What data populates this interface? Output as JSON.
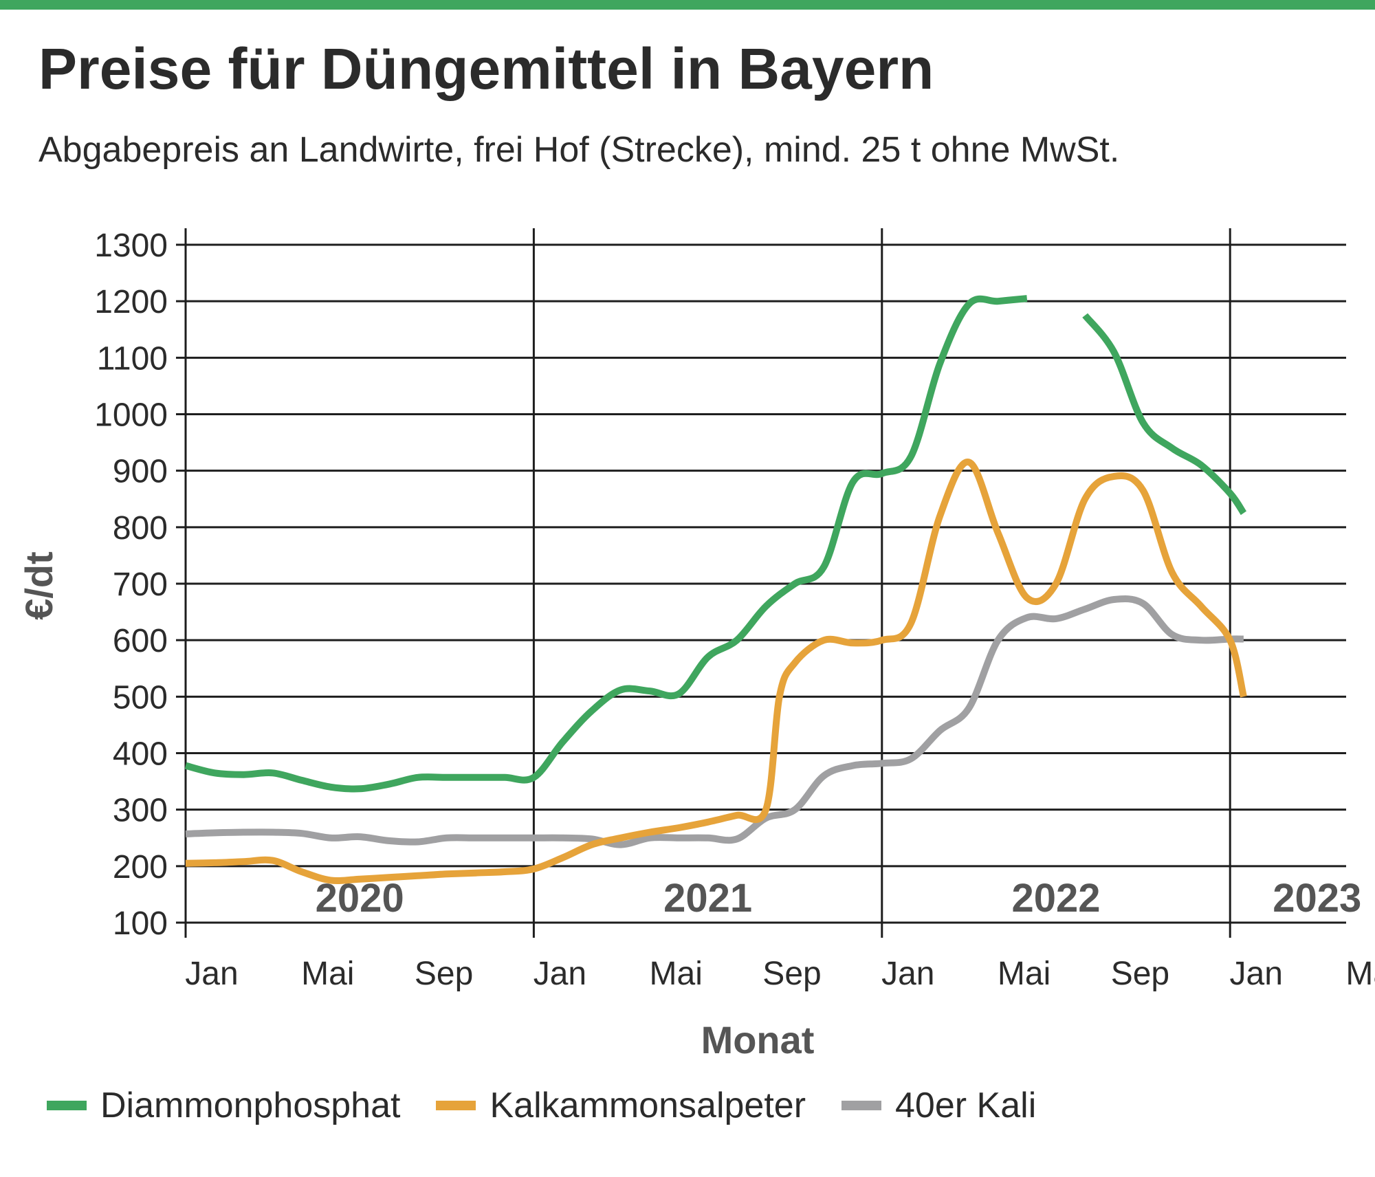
{
  "header": {
    "title": "Preise für Düngemittel in Bayern",
    "subtitle": "Abgabepreis an Landwirte, frei Hof (Strecke), mind. 25 t ohne MwSt.",
    "accent_color": "#3fa65e"
  },
  "chart_data": {
    "type": "line",
    "title": "Preise für Düngemittel in Bayern",
    "subtitle": "Abgabepreis an Landwirte, frei Hof (Strecke), mind. 25 t ohne MwSt.",
    "xlabel": "Monat",
    "ylabel": "€/dt",
    "ylim": [
      100,
      1300
    ],
    "yticks": [
      "100",
      "200",
      "300",
      "400",
      "500",
      "600",
      "700",
      "800",
      "900",
      "1000",
      "1100",
      "1200",
      "1300"
    ],
    "xlim": [
      "2020-01",
      "2023-05"
    ],
    "xticks": [
      {
        "date": "2020-01",
        "label": "Jan"
      },
      {
        "date": "2020-05",
        "label": "Mai"
      },
      {
        "date": "2020-09",
        "label": "Sep"
      },
      {
        "date": "2021-01",
        "label": "Jan"
      },
      {
        "date": "2021-05",
        "label": "Mai"
      },
      {
        "date": "2021-09",
        "label": "Sep"
      },
      {
        "date": "2022-01",
        "label": "Jan"
      },
      {
        "date": "2022-05",
        "label": "Mai"
      },
      {
        "date": "2022-09",
        "label": "Sep"
      },
      {
        "date": "2023-01",
        "label": "Jan"
      },
      {
        "date": "2023-05",
        "label": "Mai"
      }
    ],
    "year_labels": [
      {
        "year": "2020",
        "center": "2020-07"
      },
      {
        "year": "2021",
        "center": "2021-07"
      },
      {
        "year": "2022",
        "center": "2022-07"
      },
      {
        "year": "2023",
        "center": "2023-04"
      }
    ],
    "grid": true,
    "legend_position": "bottom",
    "series": [
      {
        "name": "Diammonphosphat",
        "color": "#3fa65e",
        "points": [
          [
            "2020-01-01",
            378
          ],
          [
            "2020-02-01",
            365
          ],
          [
            "2020-03-01",
            362
          ],
          [
            "2020-04-01",
            365
          ],
          [
            "2020-05-01",
            352
          ],
          [
            "2020-06-01",
            340
          ],
          [
            "2020-07-01",
            337
          ],
          [
            "2020-08-01",
            345
          ],
          [
            "2020-09-01",
            357
          ],
          [
            "2020-10-01",
            357
          ],
          [
            "2020-11-01",
            357
          ],
          [
            "2020-12-01",
            357
          ],
          [
            "2021-01-01",
            357
          ],
          [
            "2021-02-01",
            420
          ],
          [
            "2021-03-01",
            475
          ],
          [
            "2021-04-01",
            512
          ],
          [
            "2021-05-01",
            510
          ],
          [
            "2021-06-01",
            505
          ],
          [
            "2021-07-01",
            570
          ],
          [
            "2021-08-01",
            600
          ],
          [
            "2021-09-01",
            660
          ],
          [
            "2021-10-01",
            700
          ],
          [
            "2021-11-01",
            730
          ],
          [
            "2021-12-01",
            880
          ],
          [
            "2022-01-01",
            895
          ],
          [
            "2022-02-01",
            925
          ],
          [
            "2022-03-01",
            1090
          ],
          [
            "2022-04-01",
            1195
          ],
          [
            "2022-05-01",
            1200
          ],
          [
            "2022-06-01",
            1205
          ],
          null,
          [
            "2022-08-01",
            1175
          ],
          [
            "2022-09-01",
            1110
          ],
          [
            "2022-10-01",
            985
          ],
          [
            "2022-11-01",
            940
          ],
          [
            "2022-12-01",
            910
          ],
          [
            "2023-01-01",
            860
          ],
          [
            "2023-01-15",
            825
          ]
        ]
      },
      {
        "name": "Kalkammonsalpeter",
        "color": "#e6a33a",
        "points": [
          [
            "2020-01-01",
            205
          ],
          [
            "2020-02-01",
            206
          ],
          [
            "2020-03-01",
            208
          ],
          [
            "2020-04-01",
            210
          ],
          [
            "2020-05-01",
            190
          ],
          [
            "2020-06-01",
            175
          ],
          [
            "2020-07-01",
            177
          ],
          [
            "2020-08-01",
            180
          ],
          [
            "2020-09-01",
            183
          ],
          [
            "2020-10-01",
            186
          ],
          [
            "2020-11-01",
            188
          ],
          [
            "2020-12-01",
            190
          ],
          [
            "2021-01-01",
            195
          ],
          [
            "2021-02-01",
            215
          ],
          [
            "2021-03-01",
            238
          ],
          [
            "2021-04-01",
            250
          ],
          [
            "2021-05-01",
            260
          ],
          [
            "2021-06-01",
            268
          ],
          [
            "2021-07-01",
            278
          ],
          [
            "2021-08-01",
            290
          ],
          [
            "2021-09-01",
            300
          ],
          [
            "2021-09-15",
            500
          ],
          [
            "2021-10-01",
            560
          ],
          [
            "2021-11-01",
            600
          ],
          [
            "2021-12-01",
            595
          ],
          [
            "2022-01-01",
            600
          ],
          [
            "2022-02-01",
            630
          ],
          [
            "2022-03-01",
            820
          ],
          [
            "2022-04-01",
            915
          ],
          [
            "2022-05-01",
            790
          ],
          [
            "2022-06-01",
            675
          ],
          [
            "2022-07-01",
            700
          ],
          [
            "2022-08-01",
            850
          ],
          [
            "2022-09-01",
            890
          ],
          [
            "2022-10-01",
            865
          ],
          [
            "2022-11-01",
            720
          ],
          [
            "2022-12-01",
            660
          ],
          [
            "2023-01-01",
            600
          ],
          [
            "2023-01-15",
            500
          ]
        ]
      },
      {
        "name": "40er Kali",
        "color": "#a0a0a2",
        "points": [
          [
            "2020-01-01",
            257
          ],
          [
            "2020-02-01",
            259
          ],
          [
            "2020-03-01",
            260
          ],
          [
            "2020-04-01",
            260
          ],
          [
            "2020-05-01",
            258
          ],
          [
            "2020-06-01",
            250
          ],
          [
            "2020-07-01",
            252
          ],
          [
            "2020-08-01",
            245
          ],
          [
            "2020-09-01",
            243
          ],
          [
            "2020-10-01",
            250
          ],
          [
            "2020-11-01",
            250
          ],
          [
            "2020-12-01",
            250
          ],
          [
            "2021-01-01",
            250
          ],
          [
            "2021-02-01",
            250
          ],
          [
            "2021-03-01",
            248
          ],
          [
            "2021-04-01",
            238
          ],
          [
            "2021-05-01",
            250
          ],
          [
            "2021-06-01",
            250
          ],
          [
            "2021-07-01",
            250
          ],
          [
            "2021-08-01",
            248
          ],
          [
            "2021-09-01",
            285
          ],
          [
            "2021-10-01",
            300
          ],
          [
            "2021-11-01",
            360
          ],
          [
            "2021-12-01",
            378
          ],
          [
            "2022-01-01",
            382
          ],
          [
            "2022-02-01",
            390
          ],
          [
            "2022-03-01",
            440
          ],
          [
            "2022-04-01",
            480
          ],
          [
            "2022-05-01",
            600
          ],
          [
            "2022-06-01",
            640
          ],
          [
            "2022-07-01",
            638
          ],
          [
            "2022-08-01",
            655
          ],
          [
            "2022-09-01",
            672
          ],
          [
            "2022-10-01",
            665
          ],
          [
            "2022-11-01",
            610
          ],
          [
            "2022-12-01",
            600
          ],
          [
            "2023-01-01",
            602
          ],
          [
            "2023-01-15",
            602
          ]
        ]
      }
    ]
  }
}
